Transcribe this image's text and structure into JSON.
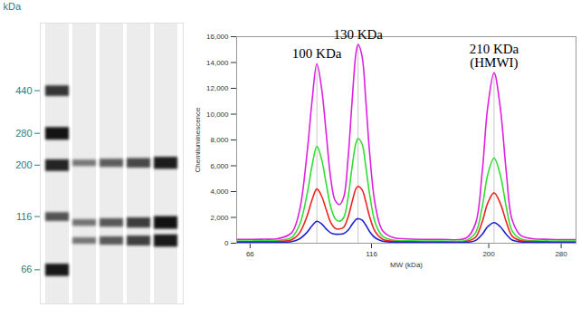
{
  "chart_data": [
    {
      "type": "gel",
      "ylabel": "kDa",
      "log": true,
      "ylim": [
        46,
        900
      ],
      "yticks": [
        440,
        280,
        200,
        116,
        66
      ],
      "ladder": {
        "bands": [
          440,
          280,
          200,
          116,
          66
        ],
        "intensity": [
          9000,
          15000,
          12000,
          5000,
          14000
        ]
      },
      "lanes": [
        {
          "bands": [
            205,
            109,
            90
          ],
          "intensity": [
            1600,
            1900,
            1700
          ]
        },
        {
          "bands": [
            205,
            109,
            90
          ],
          "intensity": [
            3900,
            4400,
            4200
          ]
        },
        {
          "bands": [
            205,
            109,
            90
          ],
          "intensity": [
            6600,
            8100,
            7500
          ]
        },
        {
          "bands": [
            205,
            109,
            90
          ],
          "intensity": [
            13200,
            15400,
            13900
          ]
        }
      ]
    },
    {
      "type": "line",
      "xlabel": "MW (kDa)",
      "ylabel": "Chemiluminescence",
      "log": "x",
      "xlim": [
        62,
        300
      ],
      "xticks": [
        66,
        116,
        200,
        280
      ],
      "ylim": [
        0,
        16000
      ],
      "yticks": [
        0,
        {
          "value": 2000,
          "label": "2,000"
        },
        {
          "value": 4000,
          "label": "4,000"
        },
        {
          "value": 6000,
          "label": "6,000"
        },
        {
          "value": 8000,
          "label": "8,000"
        },
        {
          "value": 10000,
          "label": "10,000"
        },
        {
          "value": 12000,
          "label": "12,000"
        },
        {
          "value": 14000,
          "label": "14,000"
        },
        {
          "value": 16000,
          "label": "16,000"
        }
      ],
      "x": [
        62,
        66,
        70,
        75,
        80,
        83,
        86,
        88,
        90,
        92,
        94,
        96,
        98,
        100,
        102,
        104,
        106,
        108,
        109,
        111,
        113,
        115,
        118,
        122,
        128,
        140,
        160,
        180,
        188,
        194,
        199,
        205,
        211,
        217,
        223,
        232,
        245,
        265,
        285,
        300
      ],
      "series": [
        {
          "color": "#e020e0",
          "values": [
            300,
            300,
            310,
            350,
            800,
            2500,
            7000,
            11000,
            13900,
            12000,
            8500,
            5000,
            3300,
            3000,
            3600,
            6500,
            11000,
            14800,
            15400,
            14500,
            11000,
            7000,
            3000,
            1000,
            450,
            320,
            300,
            400,
            1500,
            5500,
            10500,
            13200,
            10500,
            5500,
            1800,
            600,
            350,
            300,
            280,
            280
          ]
        },
        {
          "color": "#33dd33",
          "values": [
            180,
            180,
            190,
            220,
            450,
            1400,
            3800,
            6000,
            7500,
            6500,
            4600,
            2800,
            1900,
            1700,
            2000,
            3500,
            5900,
            7800,
            8100,
            7700,
            5900,
            3800,
            1600,
            550,
            250,
            190,
            180,
            230,
            800,
            2800,
            5300,
            6600,
            5300,
            2800,
            950,
            330,
            200,
            180,
            170,
            170
          ]
        },
        {
          "color": "#ee2222",
          "values": [
            120,
            120,
            125,
            140,
            260,
            780,
            2100,
            3350,
            4200,
            3650,
            2600,
            1600,
            1150,
            1100,
            1250,
            2000,
            3200,
            4250,
            4400,
            4150,
            3200,
            2050,
            900,
            320,
            150,
            120,
            110,
            140,
            460,
            1650,
            3100,
            3900,
            3100,
            1650,
            550,
            200,
            130,
            110,
            100,
            100
          ]
        },
        {
          "color": "#2222cc",
          "values": [
            60,
            60,
            60,
            70,
            120,
            330,
            850,
            1350,
            1700,
            1500,
            1100,
            800,
            700,
            700,
            750,
            1000,
            1450,
            1850,
            1900,
            1800,
            1400,
            900,
            420,
            160,
            80,
            60,
            60,
            70,
            200,
            680,
            1280,
            1600,
            1280,
            680,
            240,
            100,
            70,
            60,
            50,
            50
          ]
        }
      ],
      "annotations": [
        {
          "text": "100 KDa",
          "x": 90
        },
        {
          "text": "130 KDa",
          "x": 109
        },
        {
          "text": "210 KDa\n(HMWI)",
          "x": 205
        }
      ]
    }
  ]
}
